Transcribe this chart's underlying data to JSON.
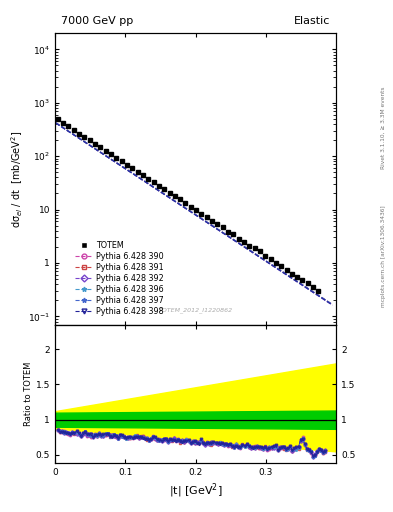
{
  "title_left": "7000 GeV pp",
  "title_right": "Elastic",
  "ylabel_main": "dσ$_{el}$ / dt  [mb/GeV$^{2}$]",
  "ylabel_ratio": "Ratio to TOTEM",
  "xlabel": "|t| [GeV$^{2}$]",
  "right_label_top": "Rivet 3.1.10, ≥ 3.3M events",
  "right_label_bottom": "mcplots.cern.ch [arXiv:1306.3436]",
  "watermark": "TOTEM_2012_I1220862",
  "xlim": [
    0.0,
    0.4
  ],
  "ylim_main": [
    0.07,
    20000
  ],
  "ylim_ratio": [
    0.38,
    2.35
  ],
  "totem_color": "#000000",
  "mc_colors": [
    "#cc44aa",
    "#cc4444",
    "#7744cc",
    "#4499cc",
    "#4466cc",
    "#222299"
  ],
  "mc_labels": [
    "Pythia 6.428 390",
    "Pythia 6.428 391",
    "Pythia 6.428 392",
    "Pythia 6.428 396",
    "Pythia 6.428 397",
    "Pythia 6.428 398"
  ],
  "mc_markers": [
    "o",
    "s",
    "D",
    "*",
    "*",
    "v"
  ],
  "green_color": "#00cc00",
  "yellow_color": "#ffff00",
  "ref_line_color": "#000000"
}
